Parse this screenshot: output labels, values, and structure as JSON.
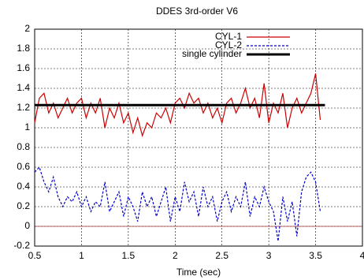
{
  "chart_data": {
    "type": "line",
    "title": "DDES 3rd-order V6",
    "x_label": "Time (sec)",
    "xlim": [
      0.5,
      4
    ],
    "xticks": [
      0.5,
      1,
      1.5,
      2,
      2.5,
      3,
      3.5,
      4
    ],
    "ylim": [
      -0.2,
      2
    ],
    "yticks": [
      -0.2,
      0,
      0.2,
      0.4,
      0.6,
      0.8,
      1,
      1.2,
      1.4,
      1.6,
      1.8,
      2
    ],
    "grid": true,
    "zeroaxis": true,
    "legend": "top-right",
    "series": [
      {
        "name": "CYL-1",
        "color": "#cc0000",
        "dash": false,
        "x": [
          0.5,
          0.55,
          0.6,
          0.65,
          0.7,
          0.75,
          0.8,
          0.85,
          0.9,
          0.95,
          1.0,
          1.05,
          1.1,
          1.15,
          1.2,
          1.25,
          1.3,
          1.35,
          1.4,
          1.45,
          1.5,
          1.55,
          1.6,
          1.65,
          1.7,
          1.75,
          1.8,
          1.85,
          1.9,
          1.95,
          2.0,
          2.05,
          2.1,
          2.15,
          2.2,
          2.25,
          2.3,
          2.35,
          2.4,
          2.45,
          2.5,
          2.55,
          2.6,
          2.65,
          2.7,
          2.75,
          2.8,
          2.85,
          2.9,
          2.95,
          3.0,
          3.05,
          3.1,
          3.15,
          3.2,
          3.25,
          3.3,
          3.35,
          3.4,
          3.45,
          3.5,
          3.55
        ],
        "values": [
          1.05,
          1.3,
          1.35,
          1.15,
          1.25,
          1.1,
          1.2,
          1.3,
          1.15,
          1.25,
          1.3,
          1.1,
          1.25,
          1.15,
          1.3,
          1.0,
          1.2,
          1.1,
          1.25,
          1.05,
          1.15,
          0.95,
          1.1,
          0.92,
          1.05,
          1.0,
          1.15,
          1.1,
          1.2,
          1.05,
          1.25,
          1.3,
          1.2,
          1.35,
          1.25,
          1.3,
          1.15,
          1.25,
          1.1,
          1.2,
          1.05,
          1.25,
          1.3,
          1.15,
          1.25,
          1.4,
          1.2,
          1.3,
          1.1,
          1.45,
          1.05,
          1.25,
          1.15,
          1.35,
          1.0,
          1.2,
          1.3,
          1.15,
          1.25,
          1.35,
          1.55,
          1.08
        ]
      },
      {
        "name": "CYL-2",
        "color": "#0000cc",
        "dash": true,
        "x": [
          0.5,
          0.55,
          0.6,
          0.65,
          0.7,
          0.75,
          0.8,
          0.85,
          0.9,
          0.95,
          1.0,
          1.05,
          1.1,
          1.15,
          1.2,
          1.25,
          1.3,
          1.35,
          1.4,
          1.45,
          1.5,
          1.55,
          1.6,
          1.65,
          1.7,
          1.75,
          1.8,
          1.85,
          1.9,
          1.95,
          2.0,
          2.05,
          2.1,
          2.15,
          2.2,
          2.25,
          2.3,
          2.35,
          2.4,
          2.45,
          2.5,
          2.55,
          2.6,
          2.65,
          2.7,
          2.75,
          2.8,
          2.85,
          2.9,
          2.95,
          3.0,
          3.05,
          3.1,
          3.15,
          3.2,
          3.25,
          3.3,
          3.35,
          3.4,
          3.45,
          3.5,
          3.55
        ],
        "values": [
          0.55,
          0.6,
          0.45,
          0.35,
          0.5,
          0.3,
          0.2,
          0.3,
          0.25,
          0.35,
          0.2,
          0.3,
          0.15,
          0.25,
          0.2,
          0.45,
          0.15,
          0.25,
          0.35,
          0.1,
          0.3,
          0.2,
          0.05,
          0.35,
          0.2,
          0.3,
          0.1,
          0.25,
          0.4,
          0.05,
          0.3,
          0.15,
          0.45,
          0.25,
          0.35,
          0.1,
          0.4,
          0.2,
          0.3,
          0.05,
          0.25,
          0.35,
          0.15,
          0.3,
          0.2,
          0.45,
          0.1,
          0.3,
          0.2,
          0.4,
          0.25,
          0.15,
          -0.15,
          0.3,
          0.05,
          0.25,
          -0.1,
          0.35,
          0.5,
          0.55,
          0.45,
          0.15
        ]
      },
      {
        "name": "single cylinder",
        "color": "#000000",
        "dash": false,
        "width": 3,
        "x": [
          0.5,
          3.6
        ],
        "values": [
          1.23,
          1.23
        ]
      }
    ]
  }
}
